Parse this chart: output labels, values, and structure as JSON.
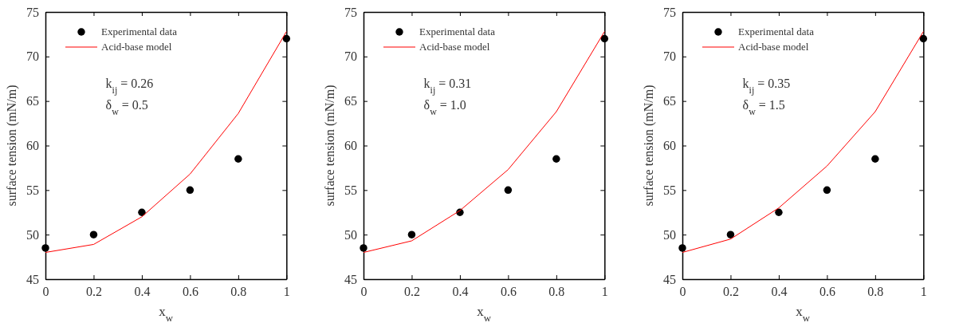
{
  "chart_data": [
    {
      "type": "line",
      "xlabel": "x$_{w}$",
      "ylabel": "surface tension (mN/m)",
      "x": [
        0,
        0.2,
        0.4,
        0.6,
        0.8,
        1
      ],
      "xlim": [
        0,
        1
      ],
      "xticks": [
        0,
        0.2,
        0.4,
        0.6,
        0.8,
        1
      ],
      "ylim": [
        45,
        75
      ],
      "yticks": [
        45,
        50,
        55,
        60,
        65,
        70,
        75
      ],
      "grid": false,
      "legend": "top left",
      "annotations": [
        "k$_{ij}$ = 0.26",
        "δ$_{w}$ = 0.5"
      ],
      "series": [
        {
          "name": "Experimental data",
          "type": "scatter",
          "color": "#000000",
          "marker": "circle",
          "values": [
            48.5,
            50,
            52.5,
            55,
            58.5,
            72
          ]
        },
        {
          "name": "Acid-base model",
          "color": "#ff0000",
          "marker": "none",
          "line_style": "solid",
          "values": [
            48,
            48.9,
            52,
            56.8,
            63.6,
            72.8
          ]
        }
      ]
    },
    {
      "type": "line",
      "xlabel": "x$_{w}$",
      "ylabel": "surface tension (mN/m)",
      "x": [
        0,
        0.2,
        0.4,
        0.6,
        0.8,
        1
      ],
      "xlim": [
        0,
        1
      ],
      "xticks": [
        0,
        0.2,
        0.4,
        0.6,
        0.8,
        1
      ],
      "ylim": [
        45,
        75
      ],
      "yticks": [
        45,
        50,
        55,
        60,
        65,
        70,
        75
      ],
      "grid": false,
      "legend": "top left",
      "annotations": [
        "k$_{ij}$ = 0.31",
        "δ$_{w}$ = 1.0"
      ],
      "series": [
        {
          "name": "Experimental data",
          "type": "scatter",
          "color": "#000000",
          "marker": "circle",
          "values": [
            48.5,
            50,
            52.5,
            55,
            58.5,
            72
          ]
        },
        {
          "name": "Acid-base model",
          "color": "#ff0000",
          "marker": "none",
          "line_style": "solid",
          "values": [
            48,
            49.3,
            52.7,
            57.3,
            63.8,
            72.8
          ]
        }
      ]
    },
    {
      "type": "line",
      "xlabel": "x$_{w}$",
      "ylabel": "surface tension (mN/m)",
      "x": [
        0,
        0.2,
        0.4,
        0.6,
        0.8,
        1
      ],
      "xlim": [
        0,
        1
      ],
      "xticks": [
        0,
        0.2,
        0.4,
        0.6,
        0.8,
        1
      ],
      "ylim": [
        45,
        75
      ],
      "yticks": [
        45,
        50,
        55,
        60,
        65,
        70,
        75
      ],
      "grid": false,
      "legend": "top left",
      "annotations": [
        "k$_{ij}$ = 0.35",
        "δ$_{w}$ = 1.5"
      ],
      "series": [
        {
          "name": "Experimental data",
          "type": "scatter",
          "color": "#000000",
          "marker": "circle",
          "values": [
            48.5,
            50,
            52.5,
            55,
            58.5,
            72
          ]
        },
        {
          "name": "Acid-base model",
          "color": "#ff0000",
          "marker": "none",
          "line_style": "solid",
          "values": [
            48,
            49.5,
            53,
            57.7,
            63.8,
            72.8
          ]
        }
      ]
    }
  ]
}
